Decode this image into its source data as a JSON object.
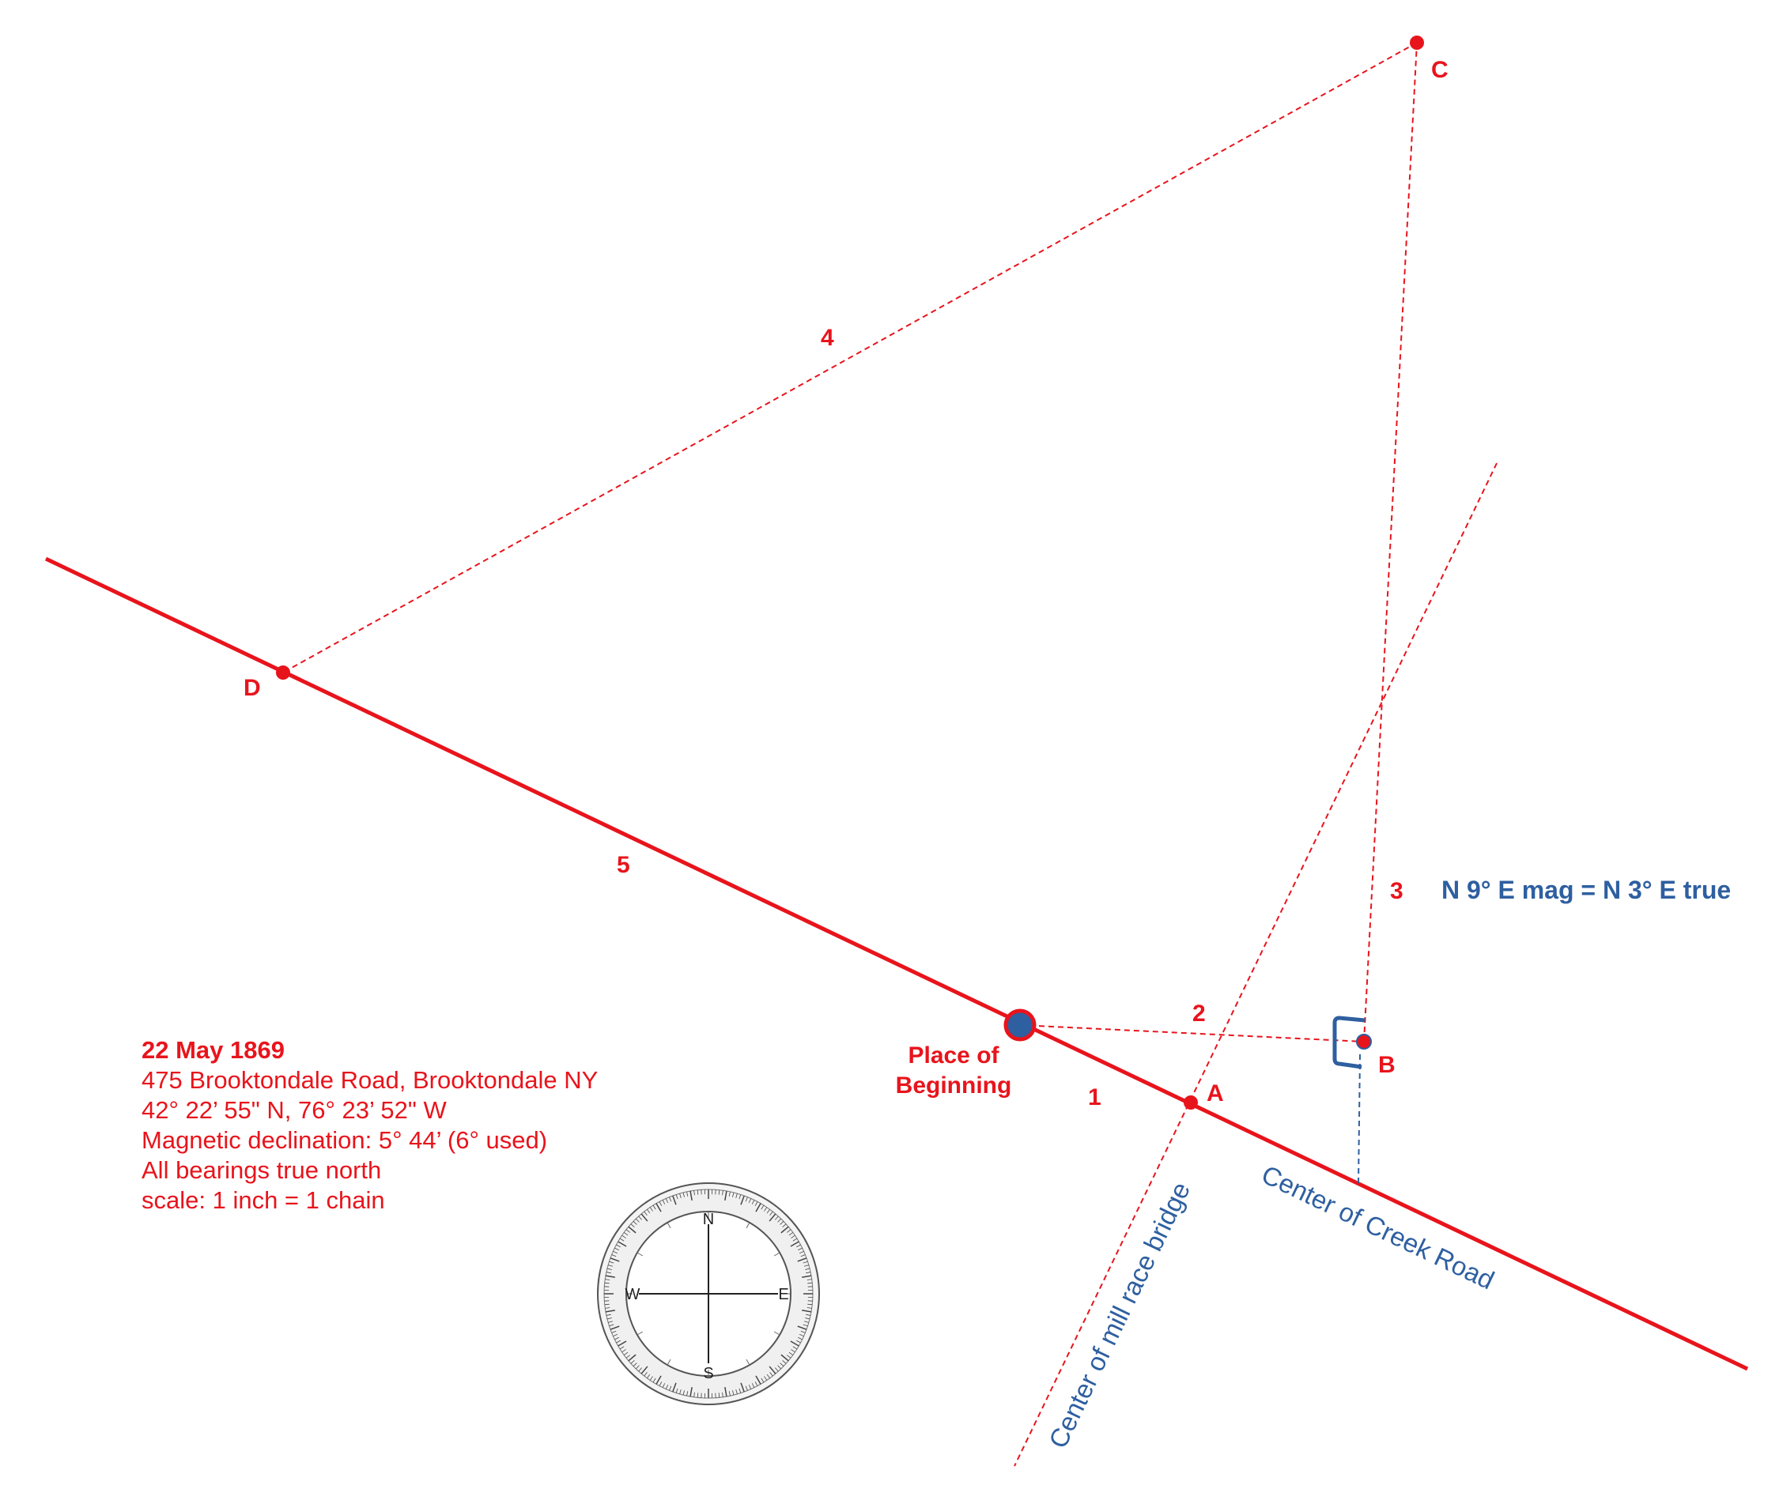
{
  "points": {
    "a": "A",
    "b": "B",
    "c": "C",
    "d": "D",
    "pob_line1": "Place of",
    "pob_line2": "Beginning"
  },
  "segments": {
    "s1": "1",
    "s2": "2",
    "s3": "3",
    "s4": "4",
    "s5": "5"
  },
  "labels": {
    "bearing_note": "N 9° E mag = N 3° E true",
    "mill_race": "Center of mill race bridge",
    "creek_road": "Center of Creek Road"
  },
  "info": {
    "date": "22 May 1869",
    "address": "475 Brooktondale Road, Brooktondale NY",
    "coords": "42° 22’ 55\" N, 76° 23’ 52\" W",
    "declination": "Magnetic declination: 5° 44’ (6° used)",
    "bearings": "All bearings true north",
    "scale": "scale: 1 inch = 1 chain"
  },
  "compass": {
    "north": "N",
    "south": "S",
    "east": "E",
    "west": "W"
  },
  "colors": {
    "survey_red": "#e8141c",
    "road_blue": "#2e5fa0"
  }
}
